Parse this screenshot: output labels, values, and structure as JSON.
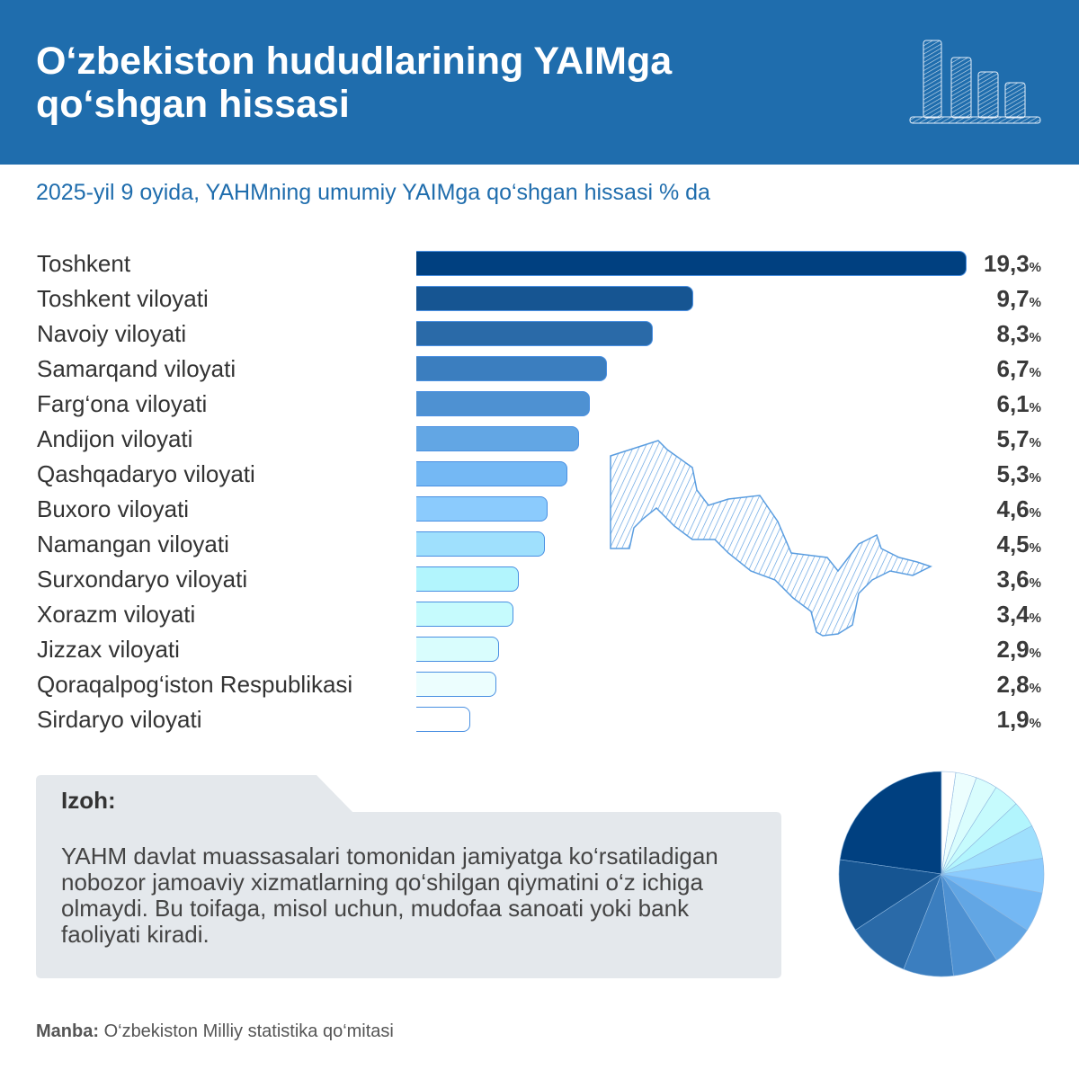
{
  "header": {
    "title": "O‘zbekiston hududlarining YAIMga qo‘shgan hissasi",
    "icon": "bar-chart-icon"
  },
  "chart_data": {
    "type": "bar",
    "orientation": "horizontal",
    "title": "O‘zbekiston hududlarining YAIMga qo‘shgan hissasi",
    "subtitle": "2025-yil 9 oyida, YAHMning umumiy YAIMga qo‘shgan hissasi % da",
    "unit": "%",
    "categories": [
      "Toshkent",
      "Toshkent viloyati",
      "Navoiy viloyati",
      "Samarqand viloyati",
      "Farg‘ona viloyati",
      "Andijon viloyati",
      "Qashqadaryo viloyati",
      "Buxoro viloyati",
      "Namangan viloyati",
      "Surxondaryo viloyati",
      "Xorazm viloyati",
      "Jizzax viloyati",
      "Qoraqalpog‘iston Respublikasi",
      "Sirdaryo viloyati"
    ],
    "values": [
      19.3,
      9.7,
      8.3,
      6.7,
      6.1,
      5.7,
      5.3,
      4.6,
      4.5,
      3.6,
      3.4,
      2.9,
      2.8,
      1.9
    ],
    "value_labels": [
      "19,3",
      "9,7",
      "8,3",
      "6,7",
      "6,1",
      "5,7",
      "5,3",
      "4,6",
      "4,5",
      "3,6",
      "3,4",
      "2,9",
      "2,8",
      "1,9"
    ],
    "colors": [
      "#004080",
      "#165592",
      "#2a6aa8",
      "#3b7ebf",
      "#4e91d2",
      "#62a6e4",
      "#74b8f4",
      "#8bcbfd",
      "#9fe0fd",
      "#b2f5fd",
      "#c6fbfd",
      "#d9fdfd",
      "#ecfefe",
      "#ffffff"
    ],
    "grid": false,
    "legend": "none"
  },
  "note": {
    "title": "Izoh:",
    "text": "YAHM davlat muassasalari tomonidan jamiyatga ko‘rsatiladigan nobozor jamoaviy xizmatlarning qo‘shilgan qiymatini o‘z ichiga olmaydi. Bu toifaga, misol uchun, mudofaa sanoati yoki bank faoliyati kiradi."
  },
  "source": {
    "label": "Manba:",
    "text": "O‘zbekiston Milliy statistika qo‘mitasi"
  },
  "percent_sign": "%"
}
